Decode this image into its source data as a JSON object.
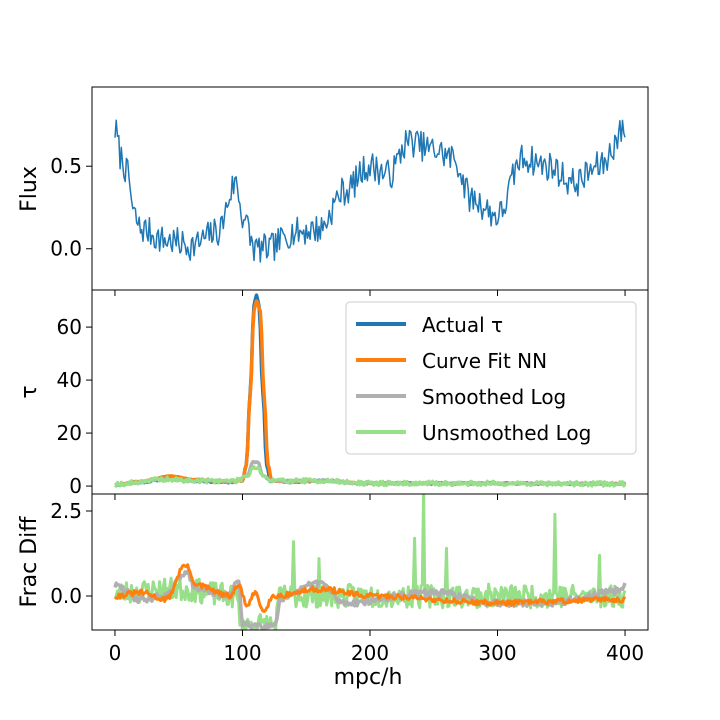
{
  "chart_data": {
    "type": "line",
    "x_range": [
      0,
      400
    ],
    "xlim": [
      -18,
      418
    ],
    "xticks": [
      0,
      100,
      200,
      300,
      400
    ],
    "xlabel": "mpc/h",
    "panels": [
      {
        "id": "flux",
        "ylabel": "Flux",
        "ylim": [
          -0.25,
          0.98
        ],
        "yticks": [
          0.0,
          0.5
        ],
        "ytick_labels": [
          "0.0",
          "0.5"
        ],
        "series": [
          {
            "name": "Flux",
            "color": "#1f77b4",
            "width": 1.5,
            "noise": 0.09,
            "seed": 7,
            "n": 400,
            "profile": [
              [
                0,
                0.72
              ],
              [
                5,
                0.55
              ],
              [
                10,
                0.45
              ],
              [
                15,
                0.2
              ],
              [
                20,
                0.12
              ],
              [
                40,
                0.05
              ],
              [
                60,
                0.02
              ],
              [
                80,
                0.1
              ],
              [
                95,
                0.4
              ],
              [
                100,
                0.2
              ],
              [
                110,
                0.0
              ],
              [
                120,
                0.0
              ],
              [
                140,
                0.1
              ],
              [
                160,
                0.12
              ],
              [
                180,
                0.35
              ],
              [
                200,
                0.5
              ],
              [
                215,
                0.45
              ],
              [
                230,
                0.65
              ],
              [
                250,
                0.6
              ],
              [
                265,
                0.55
              ],
              [
                280,
                0.3
              ],
              [
                300,
                0.2
              ],
              [
                320,
                0.55
              ],
              [
                340,
                0.5
              ],
              [
                360,
                0.4
              ],
              [
                380,
                0.5
              ],
              [
                400,
                0.72
              ]
            ]
          }
        ]
      },
      {
        "id": "tau",
        "ylabel": "τ",
        "ylim": [
          -3,
          74
        ],
        "yticks": [
          0,
          20,
          40,
          60
        ],
        "ytick_labels": [
          "0",
          "20",
          "40",
          "60"
        ],
        "legend_position": "upper right",
        "series": [
          {
            "name": "Actual τ",
            "color": "#1f77b4",
            "width": 3.5,
            "noise": 0.3,
            "seed": 11,
            "n": 400,
            "profile": [
              [
                0,
                0.5
              ],
              [
                20,
                1.5
              ],
              [
                45,
                3
              ],
              [
                60,
                2
              ],
              [
                90,
                1.5
              ],
              [
                100,
                2
              ],
              [
                103,
                8
              ],
              [
                106,
                35
              ],
              [
                109,
                68
              ],
              [
                111,
                72
              ],
              [
                113,
                68
              ],
              [
                116,
                35
              ],
              [
                119,
                8
              ],
              [
                122,
                2
              ],
              [
                140,
                1.5
              ],
              [
                160,
                2
              ],
              [
                200,
                1
              ],
              [
                300,
                1
              ],
              [
                400,
                0.8
              ]
            ]
          },
          {
            "name": "Curve Fit NN",
            "color": "#ff7f0e",
            "width": 3.5,
            "noise": 0.15,
            "seed": 13,
            "n": 400,
            "profile": [
              [
                0,
                0.5
              ],
              [
                20,
                1.8
              ],
              [
                45,
                3.8
              ],
              [
                60,
                2.5
              ],
              [
                90,
                1.5
              ],
              [
                100,
                2
              ],
              [
                103,
                8
              ],
              [
                106,
                34
              ],
              [
                109,
                66
              ],
              [
                111,
                70
              ],
              [
                114,
                66
              ],
              [
                117,
                34
              ],
              [
                120,
                8
              ],
              [
                123,
                2
              ],
              [
                140,
                1.5
              ],
              [
                160,
                2
              ],
              [
                200,
                1
              ],
              [
                300,
                1
              ],
              [
                400,
                0.8
              ]
            ]
          },
          {
            "name": "Smoothed Log",
            "color": "#b0b0b0",
            "width": 3.5,
            "noise": 0.2,
            "seed": 17,
            "n": 400,
            "profile": [
              [
                0,
                0.5
              ],
              [
                40,
                2.5
              ],
              [
                60,
                2
              ],
              [
                95,
                2
              ],
              [
                104,
                4
              ],
              [
                108,
                9
              ],
              [
                112,
                9
              ],
              [
                116,
                4
              ],
              [
                122,
                2
              ],
              [
                160,
                2
              ],
              [
                200,
                1
              ],
              [
                300,
                1
              ],
              [
                400,
                0.8
              ]
            ]
          },
          {
            "name": "Unsmoothed Log",
            "color": "#98df8a",
            "width": 3,
            "noise": 0.9,
            "seed": 19,
            "n": 400,
            "profile": [
              [
                0,
                0.8
              ],
              [
                40,
                2.5
              ],
              [
                60,
                2
              ],
              [
                95,
                2
              ],
              [
                104,
                4
              ],
              [
                108,
                7
              ],
              [
                112,
                7
              ],
              [
                116,
                4
              ],
              [
                122,
                2
              ],
              [
                160,
                2
              ],
              [
                200,
                1
              ],
              [
                300,
                1
              ],
              [
                400,
                0.8
              ]
            ]
          }
        ]
      },
      {
        "id": "fracdiff",
        "ylabel": "Frac Diff",
        "ylim": [
          -1.0,
          3.0
        ],
        "yticks": [
          0.0,
          2.5
        ],
        "ytick_labels": [
          "0.0",
          "2.5"
        ],
        "series": [
          {
            "name": "Unsmoothed Log",
            "color": "#98df8a",
            "width": 3,
            "noise": 0.35,
            "seed": 23,
            "n": 400,
            "profile": [
              [
                0,
                0.1
              ],
              [
                50,
                0.2
              ],
              [
                95,
                0.0
              ],
              [
                100,
                -0.85
              ],
              [
                125,
                -0.85
              ],
              [
                130,
                0.0
              ],
              [
                400,
                0.0
              ]
            ],
            "spikes": [
              [
                140,
                1.6
              ],
              [
                160,
                1.1
              ],
              [
                235,
                1.7
              ],
              [
                242,
                3.1
              ],
              [
                260,
                1.4
              ],
              [
                345,
                2.4
              ],
              [
                380,
                1.2
              ]
            ]
          },
          {
            "name": "Smoothed Log",
            "color": "#b0b0b0",
            "width": 3.5,
            "noise": 0.1,
            "seed": 29,
            "n": 400,
            "profile": [
              [
                0,
                0.3
              ],
              [
                20,
                -0.1
              ],
              [
                40,
                0.0
              ],
              [
                55,
                0.7
              ],
              [
                65,
                0.2
              ],
              [
                90,
                0.0
              ],
              [
                97,
                0.5
              ],
              [
                100,
                -0.85
              ],
              [
                125,
                -0.85
              ],
              [
                130,
                -0.1
              ],
              [
                160,
                0.4
              ],
              [
                180,
                -0.2
              ],
              [
                250,
                0.1
              ],
              [
                300,
                -0.2
              ],
              [
                340,
                -0.2
              ],
              [
                390,
                0.1
              ],
              [
                400,
                0.3
              ]
            ]
          },
          {
            "name": "Curve Fit NN",
            "color": "#ff7f0e",
            "width": 3,
            "noise": 0.08,
            "seed": 31,
            "n": 400,
            "profile": [
              [
                0,
                0.0
              ],
              [
                20,
                0.1
              ],
              [
                40,
                -0.1
              ],
              [
                55,
                0.9
              ],
              [
                65,
                0.3
              ],
              [
                90,
                0.0
              ],
              [
                97,
                0.3
              ],
              [
                104,
                -0.3
              ],
              [
                110,
                0.1
              ],
              [
                116,
                -0.4
              ],
              [
                125,
                0.0
              ],
              [
                160,
                0.2
              ],
              [
                200,
                0.0
              ],
              [
                300,
                -0.2
              ],
              [
                400,
                -0.1
              ]
            ]
          }
        ]
      }
    ]
  }
}
